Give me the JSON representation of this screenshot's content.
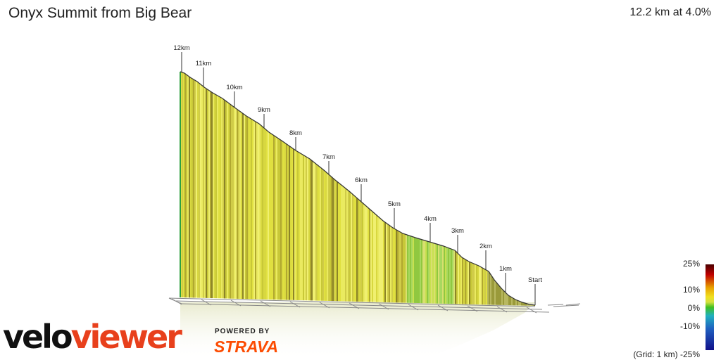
{
  "header": {
    "title": "Onyx Summit from Big Bear",
    "summary": "12.2 km at 4.0%"
  },
  "profile": {
    "markers": [
      "Start",
      "1km",
      "2km",
      "3km",
      "4km",
      "5km",
      "6km",
      "7km",
      "8km",
      "9km",
      "10km",
      "11km",
      "12km"
    ]
  },
  "legend": {
    "labels": [
      "25%",
      "10%",
      "0%",
      "-10%",
      "(Grid: 1 km) -25%"
    ]
  },
  "branding": {
    "logo_velo": "velo",
    "logo_viewer": "viewer",
    "powered_by": "POWERED BY",
    "strava": "STRAVA"
  }
}
